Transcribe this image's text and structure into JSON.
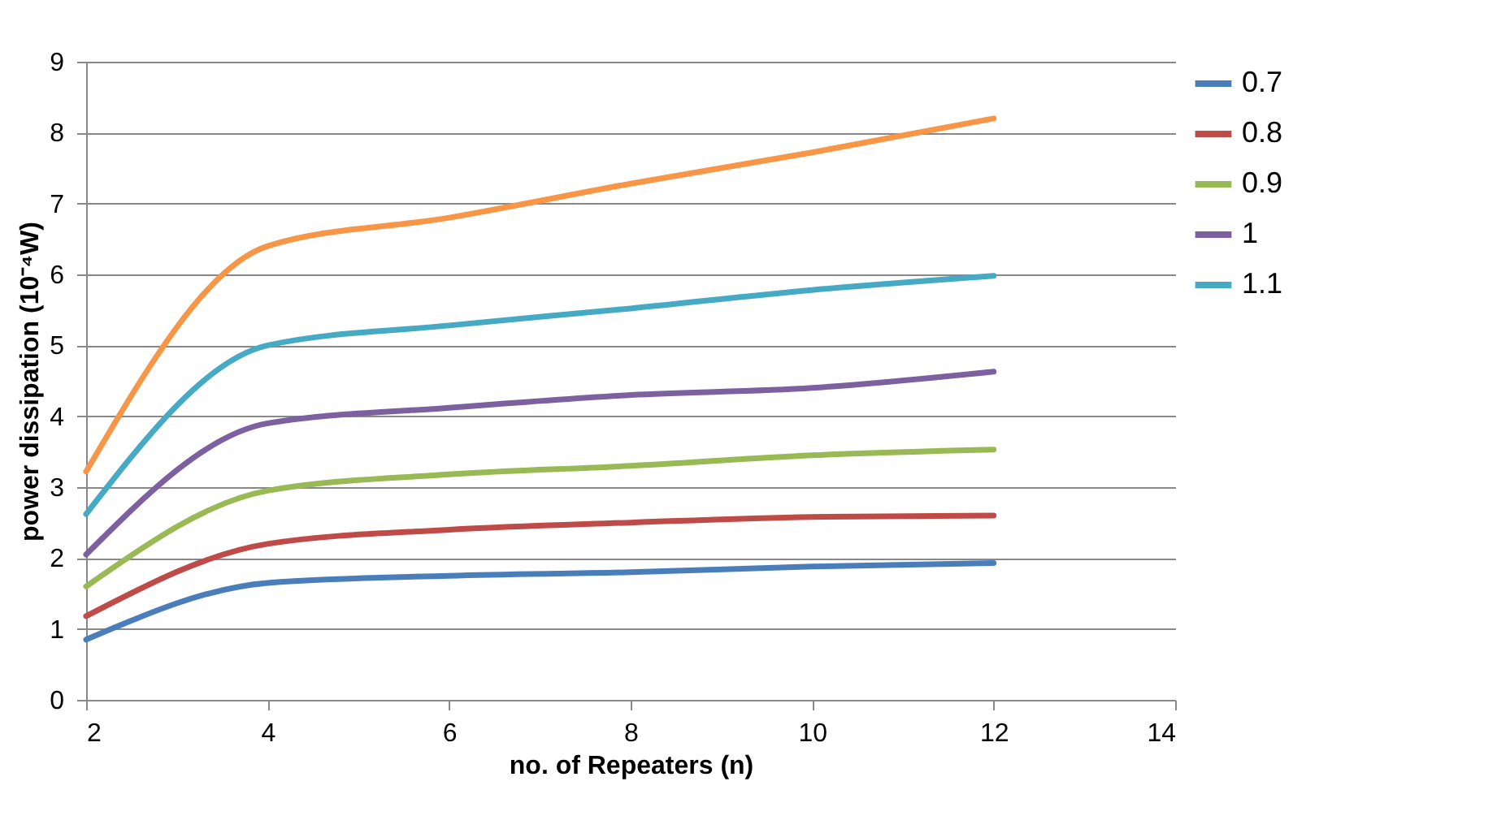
{
  "chart_data": {
    "type": "line",
    "xlabel": "no. of Repeaters (n)",
    "ylabel": "power dissipation (10⁻⁴W)",
    "x": [
      2,
      4,
      6,
      8,
      10,
      12
    ],
    "series": [
      {
        "name": "0.7",
        "color": "#4a7ebb",
        "values": [
          0.85,
          1.65,
          1.75,
          1.8,
          1.88,
          1.93
        ]
      },
      {
        "name": "0.8",
        "color": "#be4b48",
        "values": [
          1.18,
          2.2,
          2.4,
          2.5,
          2.58,
          2.6
        ]
      },
      {
        "name": "0.9",
        "color": "#98b954",
        "values": [
          1.6,
          2.95,
          3.18,
          3.3,
          3.45,
          3.53
        ]
      },
      {
        "name": "1",
        "color": "#7d60a0",
        "values": [
          2.05,
          3.9,
          4.12,
          4.3,
          4.4,
          4.63
        ]
      },
      {
        "name": "1.1",
        "color": "#46aac5",
        "values": [
          2.62,
          5.0,
          5.28,
          5.52,
          5.78,
          5.98
        ]
      },
      {
        "color": "#f79646",
        "values": [
          3.22,
          6.4,
          6.8,
          7.28,
          7.72,
          8.2
        ]
      }
    ],
    "xlim": [
      2,
      14
    ],
    "xticks": [
      2,
      4,
      6,
      8,
      10,
      12,
      14
    ],
    "ylim": [
      0,
      9
    ],
    "yticks": [
      0,
      1,
      2,
      3,
      4,
      5,
      6,
      7,
      8,
      9
    ],
    "grid": "y",
    "legend": "right",
    "marker": "none",
    "line_style": "solid"
  }
}
